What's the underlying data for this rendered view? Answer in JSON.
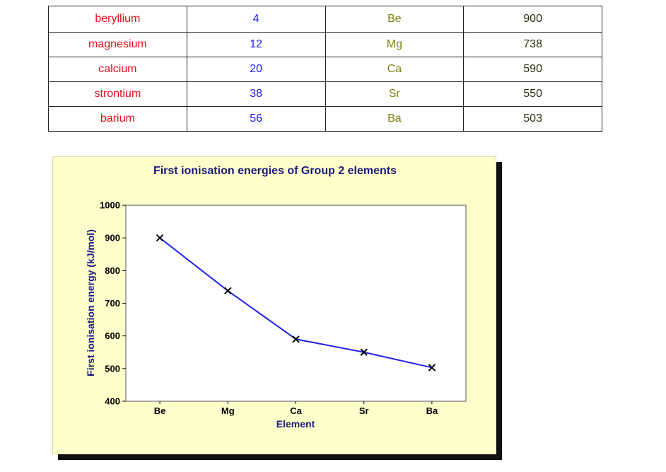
{
  "table": {
    "rows": [
      {
        "name": "beryllium",
        "atomic_number": "4",
        "symbol": "Be",
        "ionisation_energy": "900"
      },
      {
        "name": "magnesium",
        "atomic_number": "12",
        "symbol": "Mg",
        "ionisation_energy": "738"
      },
      {
        "name": "calcium",
        "atomic_number": "20",
        "symbol": "Ca",
        "ionisation_energy": "590"
      },
      {
        "name": "strontium",
        "atomic_number": "38",
        "symbol": "Sr",
        "ionisation_energy": "550"
      },
      {
        "name": "barium",
        "atomic_number": "56",
        "symbol": "Ba",
        "ionisation_energy": "503"
      }
    ]
  },
  "colors": {
    "name_text": "#e8101a",
    "number_text": "#1a1ae6",
    "symbol_text": "#7f7f12",
    "energy_text": "#2e2e12",
    "chart_background": "#ffffcc",
    "line": "#2222ee",
    "title_text": "#1a1a80"
  },
  "chart_data": {
    "type": "line",
    "title": "First ionisation energies of Group 2 elements",
    "xlabel": "Element",
    "ylabel": "First ionisation energy (kJ/mol)",
    "categories": [
      "Be",
      "Mg",
      "Ca",
      "Sr",
      "Ba"
    ],
    "values": [
      900,
      738,
      590,
      550,
      503
    ],
    "ylim": [
      400,
      1000
    ],
    "yticks": [
      400,
      500,
      600,
      700,
      800,
      900,
      1000
    ],
    "marker": "x",
    "grid": false,
    "legend": "none"
  }
}
